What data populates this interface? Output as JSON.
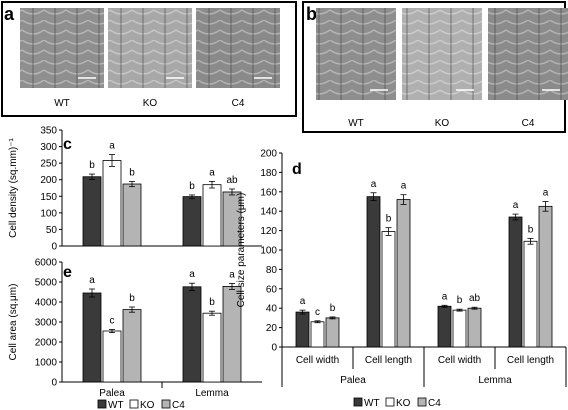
{
  "panels": {
    "a": {
      "letter": "a",
      "images": [
        {
          "caption": "WT",
          "tone": "#8f8f8f"
        },
        {
          "caption": "KO",
          "tone": "#a8a8a8"
        },
        {
          "caption": "C4",
          "tone": "#8a8a8a"
        }
      ]
    },
    "b": {
      "letter": "b",
      "images": [
        {
          "caption": "WT",
          "tone": "#8e8e8e"
        },
        {
          "caption": "KO",
          "tone": "#b0b0b0"
        },
        {
          "caption": "C4",
          "tone": "#8b8b8b"
        }
      ]
    }
  },
  "legend": {
    "items": [
      {
        "label": "WT",
        "color": "#3a3a3a"
      },
      {
        "label": "KO",
        "color": "#ffffff"
      },
      {
        "label": "C4",
        "color": "#b4b4b4"
      }
    ]
  },
  "chart_data": [
    {
      "panel": "c",
      "type": "bar",
      "ylabel": "Cell density (sq.mm)⁻¹",
      "ylim": [
        0,
        350
      ],
      "yticks": [
        0,
        50,
        100,
        150,
        200,
        250,
        300,
        350
      ],
      "categories": [
        "",
        ""
      ],
      "series": [
        {
          "name": "WT",
          "values": [
            209,
            149
          ],
          "errors": [
            8,
            5
          ],
          "letters": [
            "b",
            "b"
          ]
        },
        {
          "name": "KO",
          "values": [
            258,
            185
          ],
          "errors": [
            18,
            10
          ],
          "letters": [
            "a",
            "a"
          ]
        },
        {
          "name": "C4",
          "values": [
            187,
            163
          ],
          "errors": [
            8,
            9
          ],
          "letters": [
            "b",
            "ab"
          ]
        }
      ]
    },
    {
      "panel": "e",
      "type": "bar",
      "ylabel": "Cell area (sq.μm)",
      "ylim": [
        0,
        6000
      ],
      "yticks": [
        0,
        1000,
        2000,
        3000,
        4000,
        5000,
        6000
      ],
      "categories": [
        "Palea",
        "Lemma"
      ],
      "series": [
        {
          "name": "WT",
          "values": [
            4450,
            4760
          ],
          "errors": [
            200,
            180
          ],
          "letters": [
            "a",
            "a"
          ]
        },
        {
          "name": "KO",
          "values": [
            2550,
            3440
          ],
          "errors": [
            80,
            100
          ],
          "letters": [
            "c",
            "b"
          ]
        },
        {
          "name": "C4",
          "values": [
            3620,
            4780
          ],
          "errors": [
            130,
            150
          ],
          "letters": [
            "b",
            "a"
          ]
        }
      ]
    },
    {
      "panel": "d",
      "type": "bar",
      "ylabel": "Cell size parameters (μm)",
      "ylim": [
        0,
        200
      ],
      "yticks": [
        0,
        20,
        40,
        60,
        80,
        100,
        120,
        140,
        160,
        180,
        200
      ],
      "categories": [
        "Cell width",
        "Cell length",
        "Cell width",
        "Cell length"
      ],
      "groups": [
        "Palea",
        "Lemma"
      ],
      "series": [
        {
          "name": "WT",
          "values": [
            36,
            155,
            42,
            134
          ],
          "errors": [
            2,
            4,
            1,
            3
          ],
          "letters": [
            "a",
            "a",
            "a",
            "a"
          ]
        },
        {
          "name": "KO",
          "values": [
            26,
            119,
            38,
            109
          ],
          "errors": [
            1,
            4,
            1,
            3
          ],
          "letters": [
            "c",
            "b",
            "b",
            "b"
          ]
        },
        {
          "name": "C4",
          "values": [
            30,
            152,
            40,
            145
          ],
          "errors": [
            1,
            5,
            1,
            5
          ],
          "letters": [
            "b",
            "a",
            "ab",
            "a"
          ]
        }
      ]
    }
  ]
}
